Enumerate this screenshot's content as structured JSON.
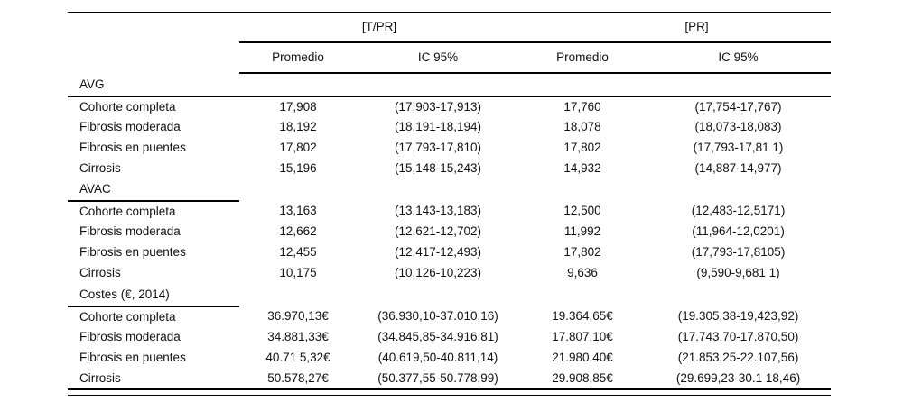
{
  "table": {
    "group_headers": [
      "[T/PR]",
      "[PR]"
    ],
    "column_headers": [
      "Promedio",
      "IC 95%",
      "Promedio",
      "IC 95%"
    ],
    "sections": [
      {
        "title": "AVG",
        "rows": [
          [
            "Cohorte completa",
            "17,908",
            "(17,903-17,913)",
            "17,760",
            "(17,754-17,767)"
          ],
          [
            "Fibrosis moderada",
            "18,192",
            "(18,191-18,194)",
            "18,078",
            "(18,073-18,083)"
          ],
          [
            "Fibrosis en puentes",
            "17,802",
            "(17,793-17,810)",
            "17,802",
            "(17,793-17,81 1)"
          ],
          [
            "Cirrosis",
            "15,196",
            "(15,148-15,243)",
            "14,932",
            "(14,887-14,977)"
          ]
        ]
      },
      {
        "title": "AVAC",
        "rows": [
          [
            "Cohorte completa",
            "13,163",
            "(13,143-13,183)",
            "12,500",
            "(12,483-12,5171)"
          ],
          [
            "Fibrosis moderada",
            "12,662",
            "(12,621-12,702)",
            "11,992",
            "(11,964-12,0201)"
          ],
          [
            "Fibrosis en puentes",
            "12,455",
            "(12,417-12,493)",
            "17,802",
            "(17,793-17,8105)"
          ],
          [
            "Cirrosis",
            "10,175",
            "(10,126-10,223)",
            "9,636",
            "(9,590-9,681 1)"
          ]
        ]
      },
      {
        "title": "Costes (€, 2014)",
        "rows": [
          [
            "Cohorte completa",
            "36.970,13€",
            "(36.930,10-37.010,16)",
            "19.364,65€",
            "(19.305,38-19,423,92)"
          ],
          [
            "Fibrosis moderada",
            "34.881,33€",
            "(34.845,85-34.916,81)",
            "17.807,10€",
            "(17.743,70-17.870,50)"
          ],
          [
            "Fibrosis en puentes",
            "40.71 5,32€",
            "(40.619,50-40.811,14)",
            "21.980,40€",
            "(21.853,25-22.107,56)"
          ],
          [
            "Cirrosis",
            "50.578,27€",
            "(50.377,55-50.778,99)",
            "29.908,85€",
            "(29.699,23-30.1 18,46)"
          ]
        ]
      }
    ],
    "colors": {
      "rule": "#000000",
      "text": "#111111",
      "background": "#ffffff"
    }
  }
}
